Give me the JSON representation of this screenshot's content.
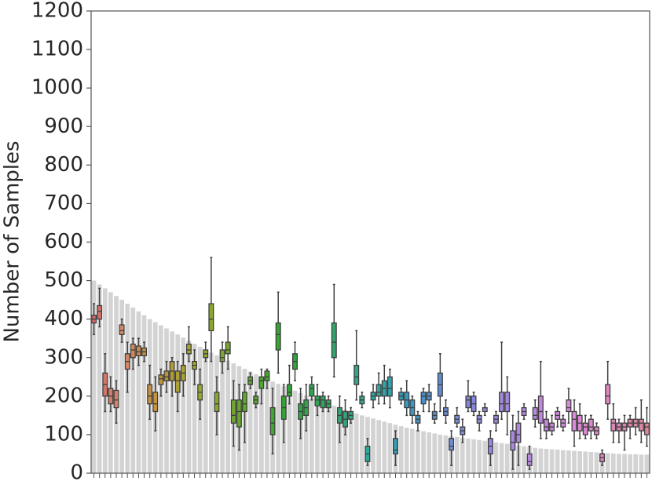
{
  "chart_data": {
    "type": "box",
    "y_label": "Number of Samples",
    "ylim": [
      0,
      1200
    ],
    "yticks": [
      0,
      100,
      200,
      300,
      400,
      500,
      600,
      700,
      800,
      900,
      1000,
      1100,
      1200
    ],
    "categories": [
      null,
      null,
      null,
      null,
      null,
      null,
      null,
      null,
      null,
      null,
      null,
      null,
      null,
      null,
      null,
      null,
      null,
      null,
      null,
      null,
      null,
      null,
      null,
      null,
      null,
      null,
      null,
      null,
      null,
      null,
      null,
      null,
      null,
      null,
      null,
      null,
      null,
      null,
      null,
      null,
      null,
      null,
      null,
      null,
      null,
      null,
      null,
      null,
      null,
      null,
      null,
      null,
      null,
      null,
      null,
      null,
      null,
      null,
      null,
      null,
      null,
      null,
      null,
      null,
      null,
      null,
      null,
      null,
      null,
      null,
      null,
      null,
      null,
      null,
      null,
      null,
      null,
      null,
      null,
      null,
      null,
      null,
      null,
      null,
      null,
      null,
      null,
      null,
      null,
      null,
      null,
      null,
      null,
      null,
      null,
      null,
      null,
      null,
      null,
      null
    ],
    "bar_color": "#d3d3d3",
    "bars": [
      500,
      490,
      480,
      470,
      460,
      450,
      440,
      430,
      420,
      410,
      400,
      392,
      384,
      376,
      368,
      360,
      352,
      344,
      336,
      328,
      320,
      313,
      306,
      299,
      292,
      285,
      278,
      271,
      264,
      257,
      250,
      244,
      238,
      232,
      226,
      220,
      214,
      208,
      202,
      196,
      190,
      185,
      180,
      175,
      170,
      165,
      160,
      155,
      150,
      146,
      142,
      138,
      134,
      130,
      126,
      122,
      118,
      115,
      112,
      109,
      106,
      103,
      100,
      98,
      96,
      94,
      92,
      90,
      88,
      86,
      84,
      82,
      80,
      78,
      76,
      74,
      72,
      70,
      68,
      66,
      64,
      63,
      62,
      61,
      60,
      59,
      58,
      57,
      56,
      55,
      54,
      53,
      52,
      51,
      50,
      50,
      49,
      49,
      48,
      48
    ],
    "whislo": [
      360,
      380,
      160,
      160,
      130,
      340,
      210,
      270,
      280,
      290,
      140,
      110,
      200,
      210,
      200,
      160,
      200,
      290,
      230,
      140,
      290,
      290,
      100,
      260,
      270,
      70,
      60,
      80,
      220,
      170,
      180,
      220,
      50,
      260,
      80,
      180,
      240,
      90,
      110,
      190,
      150,
      160,
      160,
      250,
      80,
      100,
      130,
      190,
      170,
      20,
      170,
      180,
      180,
      170,
      20,
      180,
      150,
      130,
      110,
      160,
      160,
      130,
      160,
      130,
      20,
      120,
      80,
      160,
      150,
      110,
      150,
      20,
      110,
      140,
      100,
      10,
      20,
      140,
      10,
      120,
      90,
      90,
      100,
      120,
      110,
      130,
      70,
      90,
      90,
      90,
      90,
      20,
      140,
      80,
      80,
      60,
      90,
      100,
      80,
      70
    ],
    "q1": [
      390,
      400,
      200,
      180,
      170,
      360,
      270,
      300,
      305,
      305,
      180,
      160,
      230,
      240,
      240,
      210,
      240,
      310,
      270,
      190,
      300,
      370,
      160,
      290,
      310,
      130,
      120,
      160,
      230,
      180,
      220,
      240,
      100,
      320,
      140,
      200,
      270,
      140,
      150,
      200,
      175,
      170,
      170,
      300,
      130,
      120,
      140,
      230,
      180,
      30,
      190,
      200,
      200,
      200,
      50,
      190,
      170,
      150,
      130,
      180,
      190,
      140,
      200,
      150,
      60,
      130,
      100,
      170,
      160,
      130,
      160,
      50,
      130,
      160,
      160,
      60,
      80,
      150,
      20,
      140,
      130,
      110,
      110,
      140,
      120,
      160,
      110,
      110,
      100,
      110,
      100,
      30,
      180,
      110,
      110,
      110,
      120,
      120,
      110,
      100
    ],
    "median": [
      400,
      420,
      230,
      200,
      190,
      370,
      290,
      320,
      315,
      315,
      200,
      180,
      245,
      250,
      265,
      240,
      260,
      320,
      280,
      210,
      310,
      400,
      180,
      300,
      320,
      150,
      160,
      180,
      240,
      190,
      240,
      250,
      130,
      360,
      170,
      210,
      290,
      160,
      170,
      220,
      190,
      190,
      180,
      340,
      150,
      140,
      150,
      250,
      190,
      50,
      200,
      210,
      220,
      220,
      60,
      200,
      190,
      170,
      140,
      200,
      200,
      150,
      230,
      160,
      70,
      140,
      110,
      190,
      180,
      140,
      170,
      70,
      140,
      180,
      180,
      80,
      100,
      160,
      30,
      150,
      160,
      120,
      120,
      150,
      130,
      170,
      140,
      130,
      120,
      120,
      110,
      40,
      200,
      130,
      120,
      120,
      130,
      130,
      130,
      120
    ],
    "q3": [
      410,
      435,
      260,
      220,
      215,
      385,
      310,
      335,
      330,
      325,
      230,
      210,
      255,
      265,
      290,
      265,
      280,
      335,
      290,
      230,
      320,
      440,
      210,
      320,
      340,
      190,
      190,
      210,
      250,
      200,
      250,
      265,
      170,
      390,
      200,
      230,
      310,
      180,
      190,
      230,
      200,
      200,
      190,
      390,
      170,
      160,
      160,
      280,
      200,
      70,
      210,
      230,
      240,
      250,
      90,
      210,
      210,
      190,
      150,
      210,
      210,
      160,
      260,
      170,
      90,
      150,
      120,
      200,
      200,
      150,
      170,
      90,
      150,
      210,
      210,
      110,
      130,
      170,
      50,
      170,
      200,
      140,
      130,
      160,
      140,
      190,
      160,
      150,
      130,
      140,
      120,
      50,
      230,
      140,
      130,
      130,
      140,
      140,
      140,
      130
    ],
    "whishi": [
      440,
      480,
      310,
      250,
      240,
      400,
      340,
      350,
      350,
      340,
      280,
      250,
      270,
      290,
      300,
      290,
      310,
      380,
      320,
      270,
      340,
      560,
      250,
      340,
      380,
      240,
      230,
      230,
      260,
      210,
      270,
      270,
      220,
      470,
      230,
      280,
      340,
      220,
      230,
      250,
      230,
      210,
      200,
      490,
      200,
      190,
      170,
      370,
      210,
      90,
      230,
      260,
      280,
      270,
      110,
      220,
      240,
      200,
      160,
      220,
      230,
      180,
      310,
      190,
      110,
      170,
      140,
      240,
      210,
      160,
      180,
      110,
      160,
      340,
      250,
      150,
      160,
      180,
      70,
      190,
      290,
      160,
      150,
      170,
      150,
      220,
      190,
      180,
      150,
      150,
      130,
      60,
      290,
      180,
      140,
      150,
      150,
      170,
      190,
      170
    ],
    "edge_color": "#3f3f3f",
    "box_colors": [
      "hsl(0,55%,62%)",
      "hsl(4,55%,62%)",
      "hsl(7,55%,62%)",
      "hsl(11,55%,62%)",
      "hsl(14,55%,62%)",
      "hsl(18,55%,62%)",
      "hsl(21,55%,60%)",
      "hsl(25,55%,58%)",
      "hsl(28,55%,56%)",
      "hsl(32,55%,54%)",
      "hsl(35,55%,52%)",
      "hsl(39,55%,50%)",
      "hsl(42,55%,48%)",
      "hsl(46,55%,46%)",
      "hsl(49,55%,45%)",
      "hsl(53,55%,44%)",
      "hsl(56,55%,43%)",
      "hsl(60,55%,42%)",
      "hsl(63,55%,42%)",
      "hsl(67,55%,42%)",
      "hsl(70,55%,42%)",
      "hsl(74,55%,42%)",
      "hsl(77,55%,42%)",
      "hsl(81,55%,42%)",
      "hsl(84,55%,42%)",
      "hsl(88,55%,42%)",
      "hsl(91,55%,42%)",
      "hsl(95,55%,42%)",
      "hsl(98,55%,42%)",
      "hsl(102,55%,42%)",
      "hsl(105,55%,42%)",
      "hsl(109,55%,42%)",
      "hsl(112,55%,42%)",
      "hsl(116,55%,42%)",
      "hsl(119,55%,42%)",
      "hsl(123,55%,42%)",
      "hsl(126,55%,42%)",
      "hsl(130,55%,42%)",
      "hsl(133,55%,42%)",
      "hsl(137,55%,42%)",
      "hsl(140,55%,42%)",
      "hsl(144,55%,42%)",
      "hsl(147,55%,42%)",
      "hsl(151,55%,42%)",
      "hsl(154,55%,42%)",
      "hsl(158,55%,42%)",
      "hsl(161,55%,42%)",
      "hsl(165,55%,42%)",
      "hsl(168,55%,42%)",
      "hsl(172,55%,42%)",
      "hsl(175,55%,42%)",
      "hsl(179,55%,42%)",
      "hsl(182,55%,43%)",
      "hsl(186,55%,44%)",
      "hsl(189,55%,45%)",
      "hsl(193,55%,46%)",
      "hsl(196,55%,48%)",
      "hsl(200,55%,50%)",
      "hsl(203,55%,52%)",
      "hsl(207,55%,54%)",
      "hsl(210,55%,56%)",
      "hsl(214,55%,58%)",
      "hsl(217,55%,60%)",
      "hsl(221,55%,62%)",
      "hsl(224,55%,64%)",
      "hsl(228,55%,66%)",
      "hsl(231,55%,67%)",
      "hsl(235,55%,68%)",
      "hsl(238,55%,69%)",
      "hsl(242,55%,70%)",
      "hsl(245,55%,70%)",
      "hsl(249,55%,70%)",
      "hsl(252,55%,70%)",
      "hsl(256,55%,70%)",
      "hsl(259,55%,70%)",
      "hsl(263,55%,70%)",
      "hsl(266,55%,70%)",
      "hsl(270,55%,70%)",
      "hsl(273,55%,70%)",
      "hsl(277,55%,70%)",
      "hsl(280,55%,70%)",
      "hsl(284,55%,70%)",
      "hsl(287,55%,70%)",
      "hsl(291,55%,70%)",
      "hsl(294,55%,70%)",
      "hsl(298,55%,70%)",
      "hsl(301,55%,70%)",
      "hsl(305,55%,70%)",
      "hsl(308,55%,70%)",
      "hsl(312,55%,70%)",
      "hsl(315,55%,70%)",
      "hsl(319,55%,70%)",
      "hsl(322,55%,70%)",
      "hsl(326,55%,70%)",
      "hsl(329,55%,70%)",
      "hsl(333,55%,70%)",
      "hsl(336,55%,70%)",
      "hsl(340,55%,70%)",
      "hsl(343,55%,70%)",
      "hsl(347,55%,70%)"
    ]
  }
}
